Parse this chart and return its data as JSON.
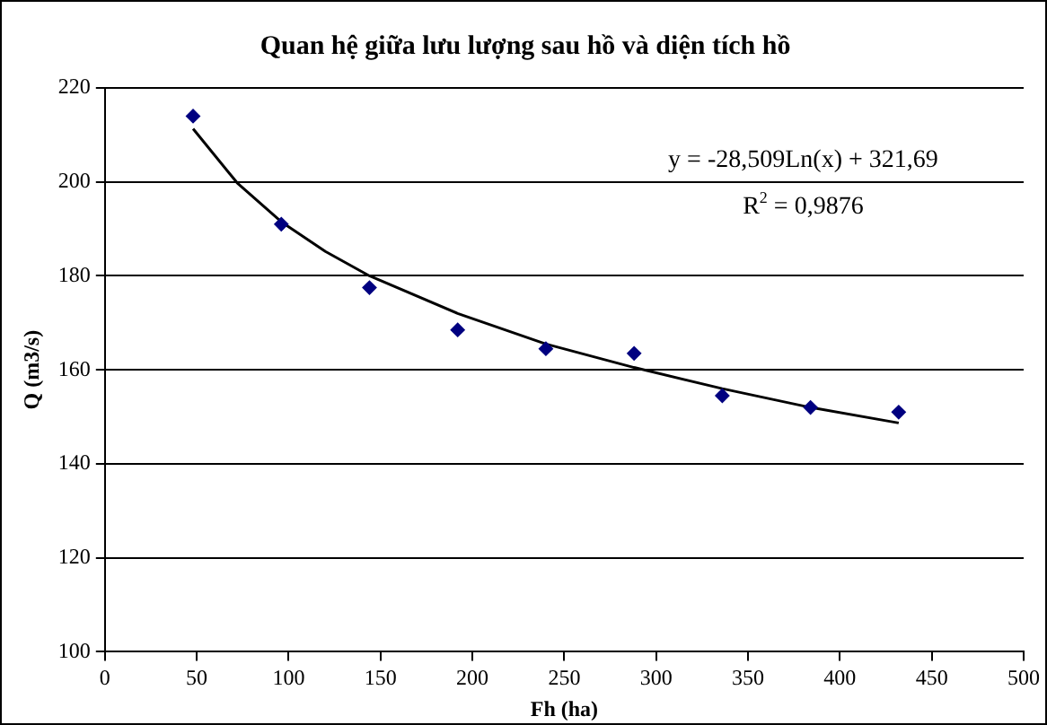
{
  "chart_data": {
    "type": "scatter",
    "title": "Quan hệ giữa lưu lượng sau hồ và diện tích hồ",
    "xlabel": "Fh (ha)",
    "ylabel": "Q (m3/s)",
    "series": [
      {
        "color": "#000080",
        "marker": "diamond",
        "x": [
          48,
          96,
          144,
          192,
          240,
          288,
          336,
          384,
          432
        ],
        "values": [
          214,
          191,
          177.5,
          168.5,
          164.5,
          163.5,
          154.5,
          152,
          151
        ]
      },
      {
        "type": "line",
        "color": "#000000",
        "marker": "none",
        "line_style": "solid",
        "x": [
          48,
          72,
          96,
          120,
          144,
          192,
          240,
          288,
          336,
          384,
          432
        ],
        "values": [
          211.3,
          199.8,
          191.5,
          185.2,
          180,
          172,
          165.5,
          160.5,
          156,
          152,
          148.7
        ]
      }
    ],
    "xlim": [
      0,
      500
    ],
    "xticks": [
      0,
      50,
      100,
      150,
      200,
      250,
      300,
      350,
      400,
      450,
      500
    ],
    "ylim": [
      100,
      220
    ],
    "yticks": [
      100,
      120,
      140,
      160,
      180,
      200,
      220
    ],
    "grid": "y",
    "legend": false,
    "annotations": [
      "y = -28,509Ln(x) + 321,69",
      "R$^{2}$ = 0,9876"
    ]
  }
}
